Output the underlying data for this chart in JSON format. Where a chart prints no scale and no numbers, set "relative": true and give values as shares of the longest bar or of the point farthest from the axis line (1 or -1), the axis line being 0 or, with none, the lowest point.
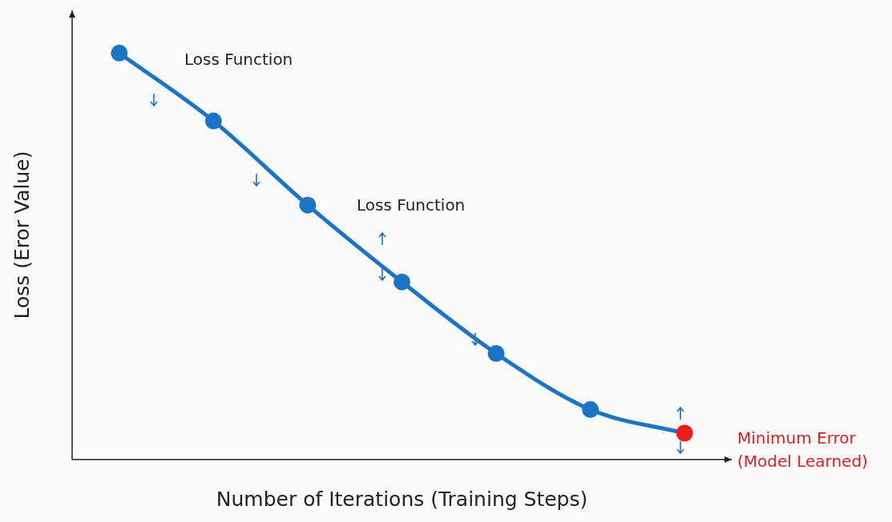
{
  "chart_data": {
    "type": "line",
    "xlabel": "Number of Iterations (Training Steps)",
    "ylabel": "Loss (Eror Value)",
    "relative": true,
    "marker": "circle",
    "line_style": "solid",
    "categories": [
      null,
      null,
      null,
      null,
      null,
      null,
      null
    ],
    "series": [
      {
        "color": "#1b74c5",
        "colors": [
          "#1b74c5",
          "#1b74c5",
          "#1b74c5",
          "#1b74c5",
          "#1b74c5",
          "#1b74c5",
          "#ea1c1c"
        ],
        "values": [
          1,
          0.833,
          0.626,
          0.437,
          0.261,
          0.123,
          0.065
        ]
      }
    ],
    "annotations": [
      "Loss Function",
      "Loss Function",
      "Minimum Error\n(Model Learned)"
    ]
  }
}
